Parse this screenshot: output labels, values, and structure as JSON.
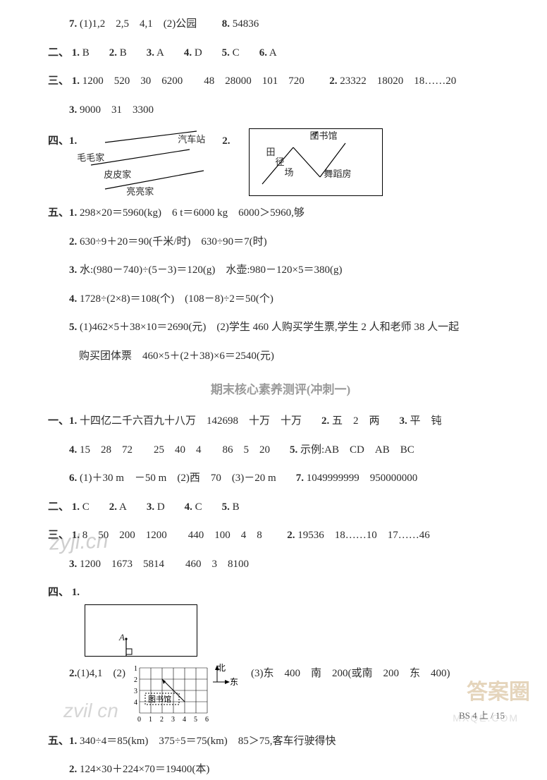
{
  "top": {
    "l1_no": "7.",
    "l1": "(1)1,2　2,5　4,1　(2)公园",
    "l1b_no": "8.",
    "l1b": "54836"
  },
  "sec2": {
    "label": "二、",
    "items": [
      {
        "no": "1.",
        "v": "B"
      },
      {
        "no": "2.",
        "v": "B"
      },
      {
        "no": "3.",
        "v": "A"
      },
      {
        "no": "4.",
        "v": "D"
      },
      {
        "no": "5.",
        "v": "C"
      },
      {
        "no": "6.",
        "v": "A"
      }
    ]
  },
  "sec3": {
    "label": "三、",
    "l1_no": "1.",
    "l1": "1200　520　30　6200　　48　28000　101　720",
    "l1b_no": "2.",
    "l1b": "23322　18020　18……20",
    "l2_no": "3.",
    "l2": "9000　31　3300"
  },
  "sec4": {
    "label": "四、",
    "no1": "1.",
    "no2": "2.",
    "d1": {
      "t1": "汽车站",
      "t2": "毛毛家",
      "t3": "皮皮家",
      "t4": "亮亮家"
    },
    "d2": {
      "t1": "图书馆",
      "t2": "田径场",
      "t3": "舞蹈房"
    }
  },
  "sec5": {
    "label": "五、",
    "rows": [
      {
        "no": "1.",
        "t": "298×20＝5960(kg)　6 t＝6000 kg　6000＞5960,够"
      },
      {
        "no": "2.",
        "t": "630÷9＋20＝90(千米/时)　630÷90＝7(时)"
      },
      {
        "no": "3.",
        "t": "水:(980－740)÷(5－3)＝120(g)　水壶:980－120×5＝380(g)"
      },
      {
        "no": "4.",
        "t": "1728÷(2×8)＝108(个)　(108－8)÷2＝50(个)"
      },
      {
        "no": "5.",
        "t": "(1)462×5＋38×10＝2690(元)　(2)学生 460 人购买学生票,学生 2 人和老师 38 人一起"
      },
      {
        "no": "",
        "t": "购买团体票　460×5＋(2＋38)×6＝2540(元)"
      }
    ]
  },
  "mid_title": "期末核心素养测评(冲刺一)",
  "b1": {
    "label": "一、",
    "rows": [
      {
        "no": "1.",
        "t": "十四亿二千六百九十八万　142698　十万　十万",
        "no2": "2.",
        "t2": "五　2　两",
        "no3": "3.",
        "t3": "平　钝"
      },
      {
        "no": "4.",
        "t": "15　28　72　　25　40　4　　86　5　20",
        "no2": "5.",
        "t2": "示例:AB　CD　AB　BC"
      },
      {
        "no": "6.",
        "t": "(1)＋30 m　－50 m　(2)西　70　(3)－20 m",
        "no2": "7.",
        "t2": "1049999999　950000000"
      }
    ]
  },
  "b2": {
    "label": "二、",
    "items": [
      {
        "no": "1.",
        "v": "C"
      },
      {
        "no": "2.",
        "v": "A"
      },
      {
        "no": "3.",
        "v": "D"
      },
      {
        "no": "4.",
        "v": "C"
      },
      {
        "no": "5.",
        "v": "B"
      }
    ]
  },
  "b3": {
    "label": "三、",
    "l1_no": "1.",
    "l1": "8　50　200　1200　　440　100　4　8",
    "l1b_no": "2.",
    "l1b": "19536　18……10　17……46",
    "l2_no": "3.",
    "l2": "1200　1673　5814　　460　3　8100"
  },
  "b4": {
    "label": "四、",
    "no1": "1.",
    "pointA": "A",
    "row2_no": "2.",
    "row2_a": "(1)4,1　(2)",
    "row2_b": "(3)东　400　南　200(或南　200　东　400)",
    "grid": {
      "xticks": [
        "0",
        "1",
        "2",
        "3",
        "4",
        "5",
        "6"
      ],
      "yticks": [
        "4",
        "3",
        "2",
        "1"
      ],
      "north": "北",
      "east": "东",
      "lib": "图书馆"
    }
  },
  "b5": {
    "label": "五、",
    "rows": [
      {
        "no": "1.",
        "t": "340÷4＝85(km)　375÷5＝75(km)　85＞75,客车行驶得快"
      },
      {
        "no": "2.",
        "t": "124×30＋224×70＝19400(本)"
      }
    ]
  },
  "footer": "BS 4 上 / 15",
  "wm1": "zyjl.cn",
  "wm2": "答案圈",
  "wm3": "MXQE.COM",
  "wm4": "zvil cn"
}
